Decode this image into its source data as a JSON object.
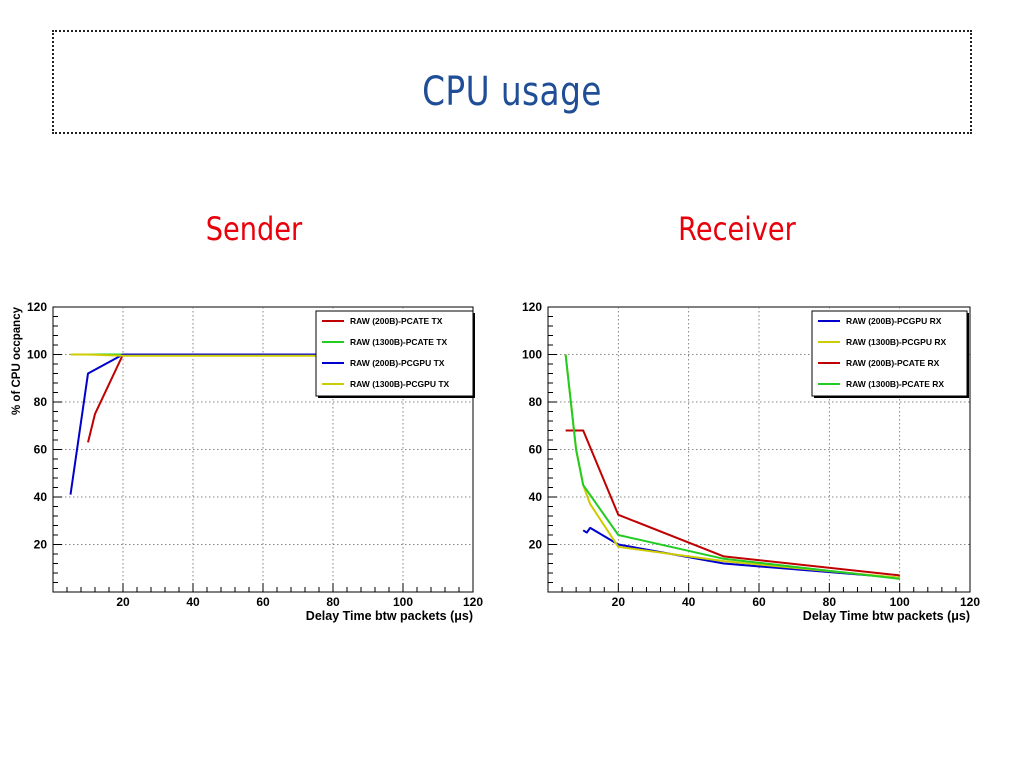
{
  "page": {
    "title": "CPU usage",
    "sender_title": "Sender",
    "receiver_title": "Receiver"
  },
  "colors": {
    "title": "#1f4e96",
    "subtitle": "#e8000b",
    "red": "#c00000",
    "green": "#22cc22",
    "blue": "#0000cc",
    "yellow": "#cccc00"
  },
  "chart_data": [
    {
      "id": "sender",
      "type": "line",
      "title": "",
      "xlabel": "Delay Time btw packets (μs)",
      "ylabel": "% of CPU occpancy",
      "xlim": [
        0,
        120
      ],
      "ylim": [
        0,
        120
      ],
      "xticks": [
        20,
        40,
        60,
        80,
        100,
        120
      ],
      "yticks": [
        20,
        40,
        60,
        80,
        100,
        120
      ],
      "grid": true,
      "legend_position": "top-right",
      "series": [
        {
          "name": "RAW (200B)-PCATE TX",
          "color": "#c00000",
          "x": [
            10,
            12,
            20,
            75
          ],
          "y": [
            63,
            75,
            100,
            100
          ]
        },
        {
          "name": "RAW (1300B)-PCATE TX",
          "color": "#22cc22",
          "x": [
            5,
            10,
            20,
            75
          ],
          "y": [
            100,
            100,
            100,
            100
          ]
        },
        {
          "name": "RAW (200B)-PCGPU TX",
          "color": "#0000cc",
          "x": [
            5,
            10,
            20,
            75
          ],
          "y": [
            41,
            92,
            100,
            100
          ]
        },
        {
          "name": "RAW (1300B)-PCGPU TX",
          "color": "#cccc00",
          "x": [
            5,
            10,
            20,
            75
          ],
          "y": [
            100,
            100,
            99.5,
            99.5
          ]
        }
      ]
    },
    {
      "id": "receiver",
      "type": "line",
      "title": "",
      "xlabel": "Delay Time btw packets (μs)",
      "ylabel": "",
      "xlim": [
        0,
        120
      ],
      "ylim": [
        0,
        120
      ],
      "xticks": [
        20,
        40,
        60,
        80,
        100,
        120
      ],
      "yticks": [
        20,
        40,
        60,
        80,
        100,
        120
      ],
      "grid": true,
      "legend_position": "top-right",
      "series": [
        {
          "name": "RAW (200B)-PCGPU RX",
          "color": "#0000cc",
          "x": [
            10,
            11,
            12,
            20,
            50,
            100
          ],
          "y": [
            26,
            25,
            27,
            20,
            12,
            6
          ]
        },
        {
          "name": "RAW (1300B)-PCGPU RX",
          "color": "#cccc00",
          "x": [
            5,
            8,
            10,
            12,
            20,
            50,
            100
          ],
          "y": [
            100,
            60,
            45,
            37,
            19,
            13,
            6
          ]
        },
        {
          "name": "RAW (200B)-PCATE RX",
          "color": "#c00000",
          "x": [
            5,
            8,
            10,
            20,
            50,
            100
          ],
          "y": [
            68,
            68,
            68,
            32.5,
            15,
            7
          ]
        },
        {
          "name": "RAW (1300B)-PCATE RX",
          "color": "#22cc22",
          "x": [
            5,
            8,
            10,
            20,
            50,
            100
          ],
          "y": [
            100,
            60,
            45,
            24,
            14,
            5.5
          ]
        }
      ]
    }
  ]
}
